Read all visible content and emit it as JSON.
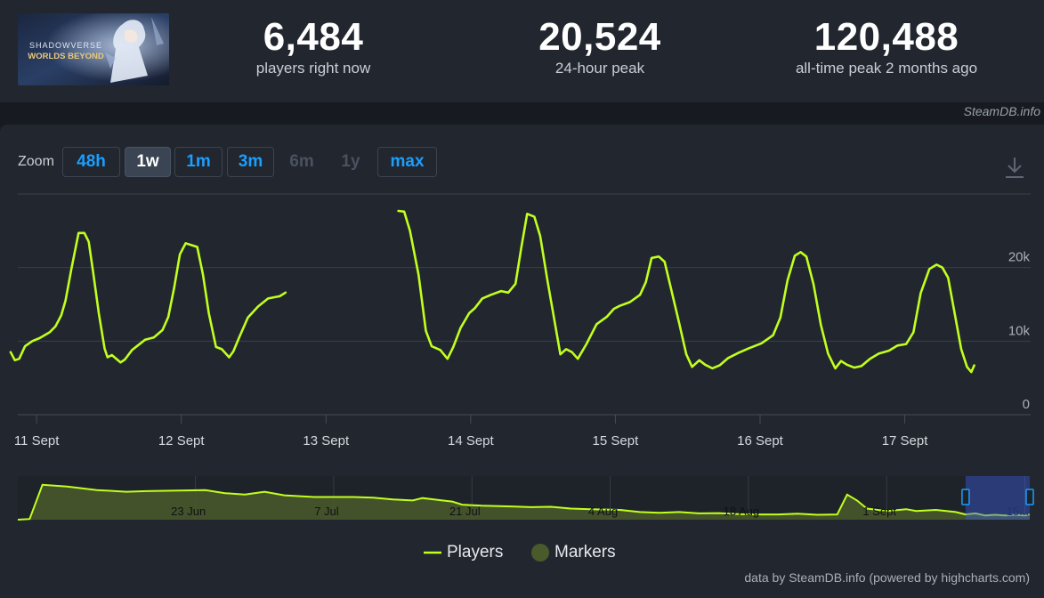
{
  "game": {
    "title_line1": "SHADOWVERSE",
    "title_line2": "WORLDS BEYOND"
  },
  "stats": [
    {
      "value": "6,484",
      "label": "players right now"
    },
    {
      "value": "20,524",
      "label": "24-hour peak"
    },
    {
      "value": "120,488",
      "label": "all-time peak 2 months ago"
    }
  ],
  "credit_top": "SteamDB.info",
  "zoom": {
    "label": "Zoom",
    "buttons": [
      {
        "label": "48h",
        "state": "normal"
      },
      {
        "label": "1w",
        "state": "active"
      },
      {
        "label": "1m",
        "state": "normal"
      },
      {
        "label": "3m",
        "state": "normal"
      },
      {
        "label": "6m",
        "state": "disabled"
      },
      {
        "label": "1y",
        "state": "disabled"
      },
      {
        "label": "max",
        "state": "normal"
      }
    ]
  },
  "legend": {
    "players": "Players",
    "markers": "Markers"
  },
  "footer": "data by SteamDB.info (powered by highcharts.com)",
  "colors": {
    "series": "#c1ff1f",
    "navigator_fill": "#4a5a2a",
    "marker": "#4a5a2a",
    "accent": "#1a9fff"
  },
  "chart_data": {
    "type": "line",
    "series": [
      {
        "name": "Players",
        "segments": [
          [
            [
              10.82,
              8500
            ],
            [
              10.85,
              7400
            ],
            [
              10.88,
              7600
            ],
            [
              10.92,
              9300
            ],
            [
              10.97,
              10000
            ],
            [
              11.02,
              10400
            ],
            [
              11.09,
              11200
            ],
            [
              11.13,
              12000
            ],
            [
              11.17,
              13500
            ],
            [
              11.2,
              15500
            ],
            [
              11.24,
              19800
            ],
            [
              11.29,
              24700
            ],
            [
              11.33,
              24700
            ],
            [
              11.36,
              23500
            ],
            [
              11.39,
              19500
            ],
            [
              11.43,
              13800
            ],
            [
              11.47,
              9000
            ],
            [
              11.49,
              7800
            ],
            [
              11.52,
              8100
            ],
            [
              11.58,
              7100
            ],
            [
              11.61,
              7500
            ],
            [
              11.66,
              8800
            ],
            [
              11.75,
              10200
            ],
            [
              11.81,
              10500
            ],
            [
              11.87,
              11500
            ],
            [
              11.91,
              13300
            ],
            [
              11.95,
              17200
            ],
            [
              11.99,
              21800
            ],
            [
              12.03,
              23300
            ],
            [
              12.11,
              22800
            ],
            [
              12.15,
              19000
            ],
            [
              12.19,
              13800
            ],
            [
              12.24,
              9200
            ],
            [
              12.28,
              8900
            ],
            [
              12.33,
              7800
            ],
            [
              12.36,
              8600
            ],
            [
              12.4,
              10500
            ],
            [
              12.46,
              13200
            ],
            [
              12.53,
              14700
            ],
            [
              12.6,
              15800
            ],
            [
              12.68,
              16100
            ],
            [
              12.72,
              16600
            ]
          ],
          [
            [
              13.5,
              27700
            ],
            [
              13.54,
              27600
            ],
            [
              13.58,
              25000
            ],
            [
              13.64,
              19000
            ],
            [
              13.69,
              11400
            ],
            [
              13.73,
              9300
            ],
            [
              13.79,
              8800
            ],
            [
              13.84,
              7600
            ],
            [
              13.88,
              9200
            ],
            [
              13.93,
              11800
            ],
            [
              13.99,
              13800
            ],
            [
              14.03,
              14500
            ],
            [
              14.08,
              15800
            ],
            [
              14.14,
              16300
            ],
            [
              14.21,
              16800
            ],
            [
              14.26,
              16600
            ],
            [
              14.31,
              17800
            ],
            [
              14.35,
              22700
            ],
            [
              14.39,
              27300
            ],
            [
              14.44,
              26900
            ],
            [
              14.48,
              24300
            ],
            [
              14.53,
              18300
            ],
            [
              14.58,
              12700
            ],
            [
              14.62,
              8200
            ],
            [
              14.66,
              8900
            ],
            [
              14.7,
              8500
            ],
            [
              14.74,
              7600
            ],
            [
              14.8,
              9600
            ],
            [
              14.87,
              12300
            ],
            [
              14.94,
              13300
            ],
            [
              14.99,
              14400
            ],
            [
              15.03,
              14800
            ],
            [
              15.1,
              15300
            ],
            [
              15.17,
              16300
            ],
            [
              15.21,
              18000
            ],
            [
              15.25,
              21300
            ],
            [
              15.3,
              21500
            ],
            [
              15.34,
              20800
            ],
            [
              15.38,
              17500
            ],
            [
              15.44,
              12500
            ],
            [
              15.49,
              8200
            ],
            [
              15.53,
              6500
            ],
            [
              15.58,
              7400
            ],
            [
              15.62,
              6800
            ],
            [
              15.67,
              6300
            ],
            [
              15.72,
              6700
            ],
            [
              15.78,
              7700
            ],
            [
              15.85,
              8400
            ],
            [
              15.92,
              9000
            ],
            [
              16.01,
              9700
            ],
            [
              16.09,
              10800
            ],
            [
              16.14,
              13200
            ],
            [
              16.19,
              18300
            ],
            [
              16.24,
              21600
            ],
            [
              16.28,
              22100
            ],
            [
              16.32,
              21500
            ],
            [
              16.37,
              17700
            ],
            [
              16.42,
              12200
            ],
            [
              16.47,
              8300
            ],
            [
              16.52,
              6300
            ],
            [
              16.56,
              7300
            ],
            [
              16.6,
              6800
            ],
            [
              16.65,
              6400
            ],
            [
              16.7,
              6600
            ],
            [
              16.76,
              7600
            ],
            [
              16.82,
              8300
            ],
            [
              16.89,
              8700
            ],
            [
              16.95,
              9400
            ],
            [
              17.01,
              9600
            ],
            [
              17.06,
              11200
            ],
            [
              17.11,
              16500
            ],
            [
              17.17,
              19800
            ],
            [
              17.22,
              20400
            ],
            [
              17.26,
              20000
            ],
            [
              17.3,
              18600
            ],
            [
              17.35,
              13200
            ],
            [
              17.39,
              8900
            ],
            [
              17.43,
              6500
            ],
            [
              17.46,
              5800
            ],
            [
              17.48,
              6700
            ]
          ]
        ]
      }
    ],
    "x_ticks": [
      "11 Sept",
      "12 Sept",
      "13 Sept",
      "14 Sept",
      "15 Sept",
      "16 Sept",
      "17 Sept"
    ],
    "x_tick_values": [
      11,
      12,
      13,
      14,
      15,
      16,
      17
    ],
    "xlim": [
      10.87,
      17.87
    ],
    "y_ticks": [
      "0",
      "10k",
      "20k"
    ],
    "y_tick_values": [
      0,
      10000,
      20000
    ],
    "ylim": [
      0,
      30000
    ],
    "grid": true,
    "legend_position": "bottom-center",
    "navigator": {
      "labels": [
        "23 Jun",
        "7 Jul",
        "21 Jul",
        "4 Aug",
        "18 Aug",
        "1 Sept",
        "15..."
      ],
      "label_positions_days": [
        13,
        27,
        41,
        55,
        69,
        83,
        97
      ],
      "xlim": [
        -5,
        97.5
      ],
      "ylim": [
        0,
        125000
      ],
      "selected_range_days": [
        91,
        98
      ],
      "series": [
        [
          -5,
          0
        ],
        [
          -3.8,
          2000
        ],
        [
          -2.5,
          100000
        ],
        [
          0,
          95000
        ],
        [
          3,
          85000
        ],
        [
          6,
          80000
        ],
        [
          8,
          82000
        ],
        [
          10,
          83000
        ],
        [
          14,
          85000
        ],
        [
          16,
          76000
        ],
        [
          18,
          72000
        ],
        [
          20,
          80000
        ],
        [
          22,
          70000
        ],
        [
          25,
          65000
        ],
        [
          29,
          65000
        ],
        [
          31,
          63000
        ],
        [
          33,
          58000
        ],
        [
          35,
          55000
        ],
        [
          36,
          62000
        ],
        [
          38,
          55000
        ],
        [
          39,
          52000
        ],
        [
          40,
          43000
        ],
        [
          42,
          40000
        ],
        [
          45,
          38000
        ],
        [
          47,
          36000
        ],
        [
          49,
          37000
        ],
        [
          51,
          32000
        ],
        [
          53,
          30000
        ],
        [
          56,
          28000
        ],
        [
          58,
          22000
        ],
        [
          60,
          20000
        ],
        [
          62,
          22000
        ],
        [
          64,
          18000
        ],
        [
          66,
          19000
        ],
        [
          68,
          16000
        ],
        [
          70,
          15000
        ],
        [
          72,
          15000
        ],
        [
          74,
          17000
        ],
        [
          76,
          14000
        ],
        [
          78,
          15000
        ],
        [
          79,
          72000
        ],
        [
          80,
          55000
        ],
        [
          81,
          32000
        ],
        [
          83,
          25000
        ],
        [
          85,
          30000
        ],
        [
          86,
          25000
        ],
        [
          88,
          28000
        ],
        [
          90,
          22000
        ],
        [
          91,
          15000
        ],
        [
          92,
          18000
        ],
        [
          93,
          12000
        ],
        [
          94,
          14000
        ],
        [
          95,
          12000
        ],
        [
          96,
          14000
        ],
        [
          97,
          12000
        ],
        [
          97.5,
          15000
        ]
      ]
    }
  }
}
